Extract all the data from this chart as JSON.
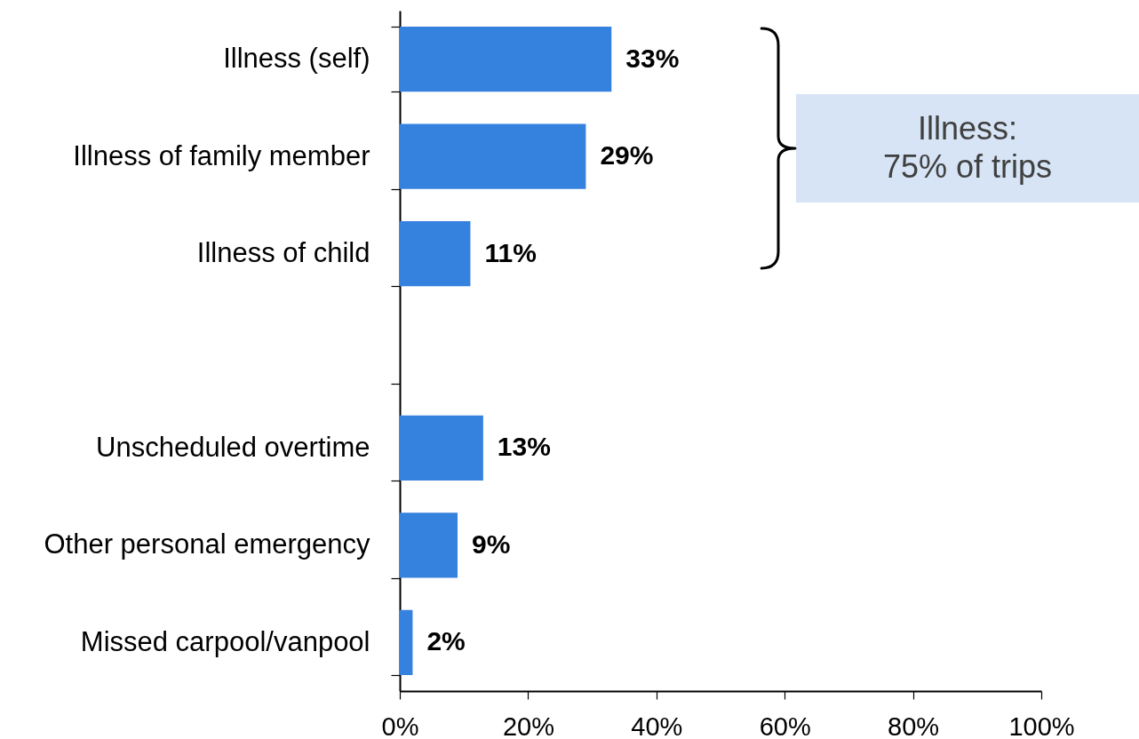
{
  "chart_data": {
    "type": "bar",
    "orientation": "horizontal",
    "categories": [
      "Illness (self)",
      "Illness of family member",
      "Illness of child",
      null,
      "Unscheduled overtime",
      "Other personal emergency",
      "Missed carpool/vanpool"
    ],
    "values": [
      33,
      29,
      11,
      null,
      13,
      9,
      2
    ],
    "value_labels": [
      "33%",
      "29%",
      "11%",
      null,
      "13%",
      "9%",
      "2%"
    ],
    "color": "#3481de",
    "xlim": [
      0,
      100
    ],
    "xticks": [
      {
        "value": 0,
        "label": "0%"
      },
      {
        "value": 20,
        "label": "20%"
      },
      {
        "value": 40,
        "label": "40%"
      },
      {
        "value": 60,
        "label": "60%"
      },
      {
        "value": 80,
        "label": "80%"
      },
      {
        "value": 100,
        "label": "100%"
      }
    ],
    "annotations": [
      "Illness:\n75% of trips"
    ]
  }
}
